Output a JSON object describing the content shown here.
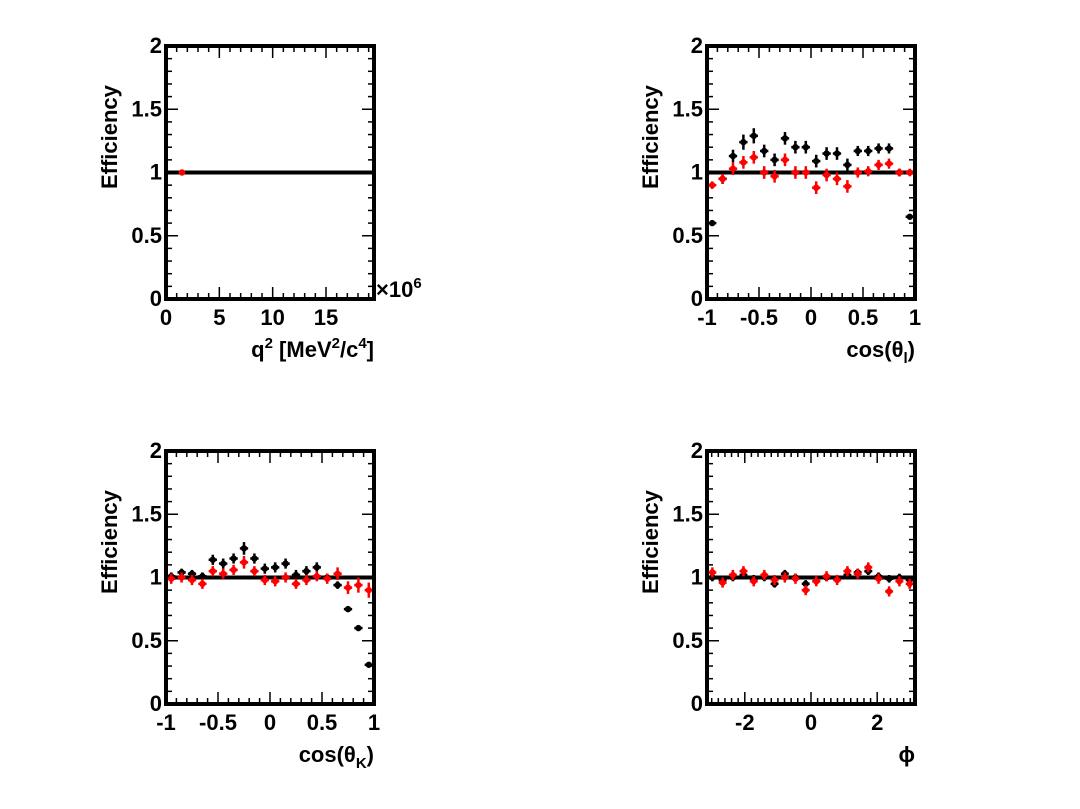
{
  "chart_data": [
    {
      "type": "scatter",
      "id": "q2",
      "ylabel": "Efficiency",
      "xlabel_parts": {
        "base": "q",
        "sup1": "2",
        "mid": " [MeV",
        "sup2": "2",
        "mid2": "/c",
        "sup3": "4",
        "end": "]"
      },
      "exponent_label": "×10",
      "exponent_power": "6",
      "xlim": [
        0,
        19.5
      ],
      "ylim": [
        0,
        2
      ],
      "xticks": [
        0,
        5,
        10,
        15
      ],
      "xtick_labels": [
        "0",
        "5",
        "10",
        "15"
      ],
      "yticks": [
        0,
        0.5,
        1,
        1.5,
        2
      ],
      "ytick_labels": [
        "0",
        "0.5",
        "1",
        "1.5",
        "2"
      ],
      "reference_line": 1,
      "series": [
        {
          "color": "#ff0000",
          "x": [
            1.5
          ],
          "y": [
            1.0
          ],
          "xerr": 0.3,
          "yerr": 0.02
        }
      ]
    },
    {
      "type": "scatter",
      "id": "costhetal",
      "ylabel": "Efficiency",
      "xlabel_parts": {
        "base": "cos(θ",
        "sub": "l",
        "end": ")"
      },
      "xlim": [
        -1,
        1
      ],
      "ylim": [
        0,
        2
      ],
      "xticks": [
        -1,
        -0.5,
        0,
        0.5,
        1
      ],
      "xtick_labels": [
        "-1",
        "-0.5",
        "0",
        "0.5",
        "1"
      ],
      "yticks": [
        0,
        0.5,
        1,
        1.5,
        2
      ],
      "ytick_labels": [
        "0",
        "0.5",
        "1",
        "1.5",
        "2"
      ],
      "reference_line": 1,
      "series": [
        {
          "color": "#000000",
          "xerr": 0.04,
          "x": [
            -0.95,
            -0.85,
            -0.75,
            -0.65,
            -0.55,
            -0.45,
            -0.35,
            -0.25,
            -0.15,
            -0.05,
            0.05,
            0.15,
            0.25,
            0.35,
            0.45,
            0.55,
            0.65,
            0.75,
            0.85,
            0.95
          ],
          "y": [
            0.6,
            0.95,
            1.13,
            1.24,
            1.29,
            1.17,
            1.1,
            1.27,
            1.2,
            1.2,
            1.09,
            1.15,
            1.15,
            1.06,
            1.17,
            1.17,
            1.19,
            1.19,
            1.0,
            0.65
          ],
          "yerr": [
            0.02,
            0.04,
            0.05,
            0.06,
            0.06,
            0.05,
            0.05,
            0.05,
            0.05,
            0.05,
            0.05,
            0.05,
            0.05,
            0.05,
            0.04,
            0.04,
            0.04,
            0.04,
            0.03,
            0.02
          ]
        },
        {
          "color": "#ff0000",
          "xerr": 0.04,
          "x": [
            -0.95,
            -0.85,
            -0.75,
            -0.65,
            -0.55,
            -0.45,
            -0.35,
            -0.25,
            -0.15,
            -0.05,
            0.05,
            0.15,
            0.25,
            0.35,
            0.45,
            0.55,
            0.65,
            0.75,
            0.85,
            0.95
          ],
          "y": [
            0.9,
            0.95,
            1.03,
            1.08,
            1.12,
            1.0,
            0.97,
            1.1,
            1.0,
            1.0,
            0.88,
            0.98,
            0.95,
            0.89,
            1.0,
            1.01,
            1.06,
            1.07,
            1.0,
            1.0
          ],
          "yerr": [
            0.03,
            0.04,
            0.05,
            0.05,
            0.05,
            0.05,
            0.05,
            0.05,
            0.05,
            0.05,
            0.05,
            0.05,
            0.05,
            0.05,
            0.04,
            0.04,
            0.04,
            0.04,
            0.03,
            0.03
          ]
        }
      ]
    },
    {
      "type": "scatter",
      "id": "costhetak",
      "ylabel": "Efficiency",
      "xlabel_parts": {
        "base": "cos(θ",
        "sub": "K",
        "end": ")"
      },
      "xlim": [
        -1,
        1
      ],
      "ylim": [
        0,
        2
      ],
      "xticks": [
        -1,
        -0.5,
        0,
        0.5,
        1
      ],
      "xtick_labels": [
        "-1",
        "-0.5",
        "0",
        "0.5",
        "1"
      ],
      "yticks": [
        0,
        0.5,
        1,
        1.5,
        2
      ],
      "ytick_labels": [
        "0",
        "0.5",
        "1",
        "1.5",
        "2"
      ],
      "reference_line": 1,
      "series": [
        {
          "color": "#000000",
          "xerr": 0.04,
          "x": [
            -0.95,
            -0.85,
            -0.75,
            -0.65,
            -0.55,
            -0.45,
            -0.35,
            -0.25,
            -0.15,
            -0.05,
            0.05,
            0.15,
            0.25,
            0.35,
            0.45,
            0.55,
            0.65,
            0.75,
            0.85,
            0.95
          ],
          "y": [
            1.01,
            1.04,
            1.03,
            1.01,
            1.14,
            1.11,
            1.15,
            1.23,
            1.15,
            1.07,
            1.08,
            1.11,
            1.02,
            1.05,
            1.08,
            1.0,
            0.94,
            0.75,
            0.6,
            0.31
          ],
          "yerr": [
            0.03,
            0.03,
            0.03,
            0.03,
            0.04,
            0.04,
            0.04,
            0.05,
            0.04,
            0.04,
            0.04,
            0.04,
            0.04,
            0.04,
            0.04,
            0.03,
            0.03,
            0.02,
            0.02,
            0.01
          ]
        },
        {
          "color": "#ff0000",
          "xerr": 0.04,
          "x": [
            -0.95,
            -0.85,
            -0.75,
            -0.65,
            -0.55,
            -0.45,
            -0.35,
            -0.25,
            -0.15,
            -0.05,
            0.05,
            0.15,
            0.25,
            0.35,
            0.45,
            0.55,
            0.65,
            0.75,
            0.85,
            0.95
          ],
          "y": [
            0.99,
            1.0,
            0.98,
            0.95,
            1.05,
            1.03,
            1.06,
            1.12,
            1.05,
            0.98,
            0.97,
            1.0,
            0.95,
            0.98,
            1.01,
            0.99,
            1.03,
            0.92,
            0.94,
            0.9
          ],
          "yerr": [
            0.04,
            0.04,
            0.04,
            0.04,
            0.04,
            0.04,
            0.04,
            0.05,
            0.04,
            0.04,
            0.04,
            0.04,
            0.04,
            0.04,
            0.04,
            0.04,
            0.05,
            0.05,
            0.06,
            0.06
          ]
        }
      ]
    },
    {
      "type": "scatter",
      "id": "phi",
      "ylabel": "Efficiency",
      "xlabel_parts": {
        "base": "ϕ"
      },
      "xlim": [
        -3.1416,
        3.1416
      ],
      "ylim": [
        0,
        2
      ],
      "xticks": [
        -2,
        0,
        2
      ],
      "xtick_labels": [
        "-2",
        "0",
        "2"
      ],
      "minor_step": 0.2,
      "yticks": [
        0,
        0.5,
        1,
        1.5,
        2
      ],
      "ytick_labels": [
        "0",
        "0.5",
        "1",
        "1.5",
        "2"
      ],
      "reference_line": 1,
      "series": [
        {
          "color": "#000000",
          "xerr": 0.12,
          "x": [
            -2.98,
            -2.67,
            -2.36,
            -2.04,
            -1.73,
            -1.41,
            -1.1,
            -0.79,
            -0.47,
            -0.16,
            0.16,
            0.47,
            0.79,
            1.1,
            1.41,
            1.73,
            2.04,
            2.36,
            2.67,
            2.98
          ],
          "y": [
            1.0,
            0.98,
            1.0,
            1.02,
            0.99,
            1.0,
            0.95,
            1.03,
            1.0,
            0.95,
            0.97,
            1.0,
            0.99,
            1.02,
            1.04,
            1.05,
            1.01,
            0.99,
            1.0,
            0.98
          ],
          "yerr": [
            0.03,
            0.03,
            0.03,
            0.03,
            0.03,
            0.03,
            0.03,
            0.03,
            0.03,
            0.03,
            0.03,
            0.03,
            0.03,
            0.03,
            0.03,
            0.03,
            0.03,
            0.03,
            0.03,
            0.03
          ]
        },
        {
          "color": "#ff0000",
          "xerr": 0.12,
          "x": [
            -2.98,
            -2.67,
            -2.36,
            -2.04,
            -1.73,
            -1.41,
            -1.1,
            -0.79,
            -0.47,
            -0.16,
            0.16,
            0.47,
            0.79,
            1.1,
            1.41,
            1.73,
            2.04,
            2.36,
            2.67,
            2.98
          ],
          "y": [
            1.04,
            0.96,
            1.02,
            1.05,
            0.97,
            1.02,
            0.98,
            1.0,
            0.99,
            0.9,
            0.97,
            1.01,
            0.98,
            1.05,
            1.03,
            1.08,
            0.99,
            0.89,
            0.97,
            0.95
          ],
          "yerr": [
            0.04,
            0.04,
            0.04,
            0.04,
            0.04,
            0.04,
            0.04,
            0.04,
            0.04,
            0.04,
            0.04,
            0.04,
            0.04,
            0.04,
            0.04,
            0.04,
            0.04,
            0.04,
            0.04,
            0.04
          ]
        }
      ]
    }
  ]
}
